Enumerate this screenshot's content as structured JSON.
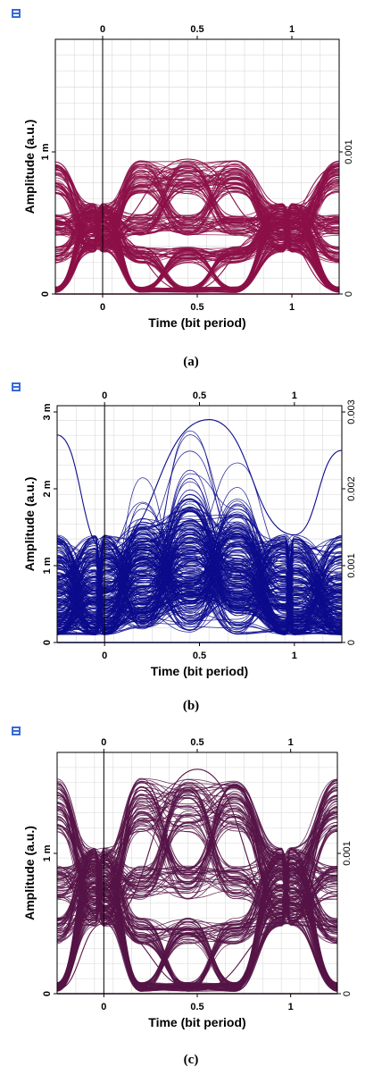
{
  "colors": {
    "a": "#8c1048",
    "b": "#0c0c8c",
    "c": "#561446"
  },
  "chart_data": [
    {
      "type": "line",
      "panel": "(a)",
      "title": "",
      "xlabel": "Time (bit period)",
      "ylabel": "Amplitude (a.u.)",
      "x_ticks": [
        "0",
        "0.5",
        "1"
      ],
      "x_top_ticks": [
        "0",
        "0.5",
        "1"
      ],
      "y_ticks": [
        "0",
        "1 m"
      ],
      "y_right_ticks": [
        "0",
        "0.001"
      ],
      "xlim": [
        -0.25,
        1.25
      ],
      "ylim": [
        -2e-05,
        0.00098
      ],
      "grid": true,
      "color": "#8c1048",
      "series": [
        {
          "x": [
            -0.25,
            0.0,
            0.45,
            0.9,
            1.25
          ],
          "y": [
            0.0009,
            0.00045,
            2e-05,
            0.00045,
            0.0009
          ]
        },
        {
          "x": [
            -0.25,
            0.0,
            0.45,
            0.9,
            1.25
          ],
          "y": [
            2e-05,
            0.00045,
            0.00095,
            0.00045,
            2e-05
          ]
        }
      ]
    },
    {
      "type": "line",
      "panel": "(b)",
      "title": "",
      "xlabel": "Time (bit period)",
      "ylabel": "Amplitude (a.u.)",
      "x_ticks": [
        "0",
        "0.5",
        "1"
      ],
      "x_top_ticks": [
        "0",
        "0.5",
        "1"
      ],
      "y_ticks": [
        "0",
        "1 m",
        "2 m",
        "3 m"
      ],
      "y_right_ticks": [
        "0",
        "0.001",
        "0.002",
        "0.003"
      ],
      "xlim": [
        -0.25,
        1.25
      ],
      "ylim": [
        -0.0001,
        0.003
      ],
      "grid": true,
      "color": "#0c0c8c",
      "series": [
        {
          "x": [
            -0.25,
            0.0,
            0.55,
            1.0,
            1.25
          ],
          "y": [
            0.0027,
            0.0012,
            0.0029,
            0.0014,
            0.0025
          ]
        },
        {
          "x": [
            -0.25,
            0.0,
            0.55,
            1.0,
            1.25
          ],
          "y": [
            0.0005,
            0.0002,
            0.0011,
            0.0003,
            0.0006
          ]
        }
      ]
    },
    {
      "type": "line",
      "panel": "(c)",
      "title": "",
      "xlabel": "Time (bit period)",
      "ylabel": "Amplitude (a.u.)",
      "x_ticks": [
        "0",
        "0.5",
        "1"
      ],
      "x_top_ticks": [
        "0",
        "0.5",
        "1"
      ],
      "y_ticks": [
        "0",
        "1 m"
      ],
      "y_right_ticks": [
        "0",
        "0.001"
      ],
      "xlim": [
        -0.25,
        1.25
      ],
      "ylim": [
        -2e-05,
        0.0016
      ],
      "grid": true,
      "color": "#561446",
      "series": [
        {
          "x": [
            -0.25,
            0.0,
            0.5,
            1.0,
            1.25
          ],
          "y": [
            0.0012,
            0.0005,
            3e-05,
            0.0005,
            0.0012
          ]
        },
        {
          "x": [
            -0.25,
            0.0,
            0.5,
            1.0,
            1.25
          ],
          "y": [
            3e-05,
            0.0005,
            0.0016,
            0.0005,
            3e-05
          ]
        }
      ]
    }
  ],
  "captions": {
    "a": "(a)",
    "b": "(b)",
    "c": "(c)"
  },
  "icons": {
    "app": "optisystem-app-icon"
  }
}
